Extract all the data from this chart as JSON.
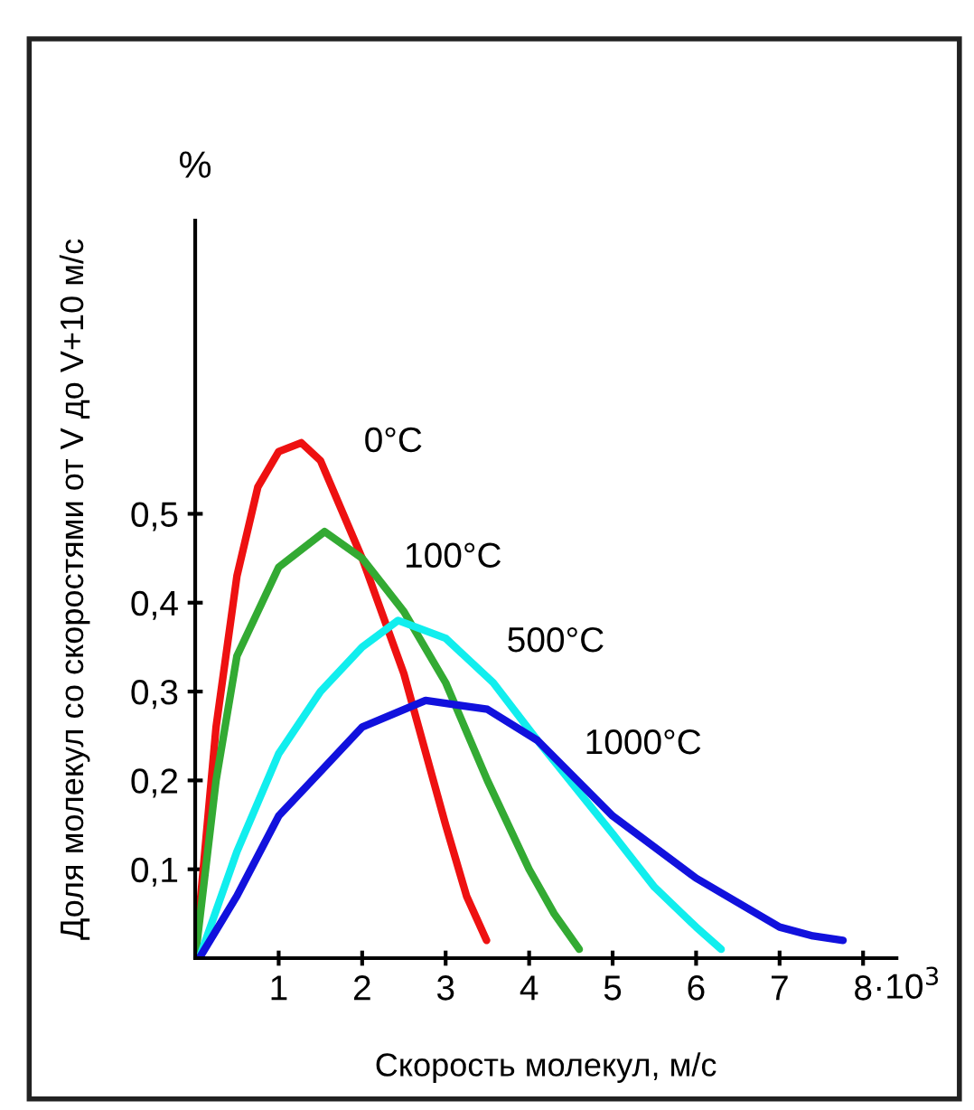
{
  "chart_data": {
    "type": "line",
    "xlabel": "Скорость молекул, м/с",
    "ylabel": "Доля молекул со скоростями от V до V+10 м/с",
    "annotations": [
      "%",
      "·10$^{3}$"
    ],
    "xlim": [
      0,
      8.4
    ],
    "ylim": [
      0,
      0.83
    ],
    "xticks": [
      1,
      2,
      3,
      4,
      5,
      6,
      7,
      8
    ],
    "yticks": [
      {
        "value": 0.1,
        "label": "0,1"
      },
      {
        "value": 0.2,
        "label": "0,2"
      },
      {
        "value": 0.3,
        "label": "0,3"
      },
      {
        "value": 0.4,
        "label": "0,4"
      },
      {
        "value": 0.5,
        "label": "0,5"
      }
    ],
    "grid": false,
    "legend": false,
    "marker": "none",
    "line_style": "solid",
    "series": [
      {
        "name": "0°C",
        "color": "#ee1111",
        "x": [
          0,
          0.25,
          0.5,
          0.75,
          1.0,
          1.27,
          1.5,
          2.0,
          2.5,
          3.0,
          3.25,
          3.49
        ],
        "values": [
          0,
          0.26,
          0.43,
          0.53,
          0.57,
          0.58,
          0.56,
          0.45,
          0.32,
          0.15,
          0.07,
          0.02
        ]
      },
      {
        "name": "100°C",
        "color": "#33aa33",
        "x": [
          0,
          0.25,
          0.5,
          1.0,
          1.55,
          2.0,
          2.5,
          3.0,
          3.5,
          4.0,
          4.3,
          4.6
        ],
        "values": [
          0,
          0.2,
          0.34,
          0.44,
          0.48,
          0.45,
          0.39,
          0.31,
          0.2,
          0.1,
          0.05,
          0.01
        ]
      },
      {
        "name": "500°C",
        "color": "#11eeee",
        "x": [
          0.05,
          0.5,
          1.0,
          1.5,
          2.0,
          2.43,
          3.0,
          3.57,
          4.1,
          5.0,
          5.5,
          6.0,
          6.3
        ],
        "values": [
          0,
          0.12,
          0.23,
          0.3,
          0.35,
          0.38,
          0.36,
          0.31,
          0.245,
          0.14,
          0.08,
          0.035,
          0.01
        ]
      },
      {
        "name": "1000°C",
        "color": "#1111dd",
        "x": [
          0.05,
          0.5,
          1.0,
          1.5,
          2.0,
          2.76,
          3.5,
          4.1,
          5.0,
          6.0,
          7.0,
          7.4,
          7.76
        ],
        "values": [
          0,
          0.07,
          0.16,
          0.21,
          0.26,
          0.29,
          0.28,
          0.245,
          0.16,
          0.09,
          0.035,
          0.025,
          0.02
        ]
      }
    ]
  }
}
